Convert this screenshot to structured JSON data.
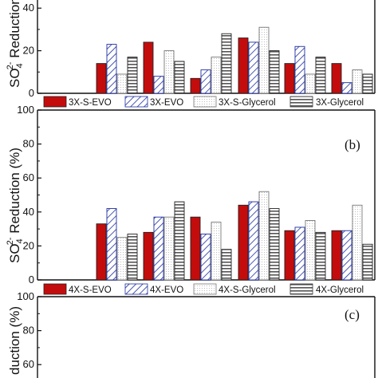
{
  "chart_data": [
    {
      "type": "bar",
      "panel_label": "",
      "ylabel_parts": [
        "SO",
        "4",
        "2-",
        " Reduction (%)"
      ],
      "ylim": [
        0,
        100
      ],
      "yticks": [
        "0",
        "20",
        "40"
      ],
      "grid": false,
      "series": [
        {
          "name": "3X-S-EVO",
          "values": [
            0,
            14,
            24,
            7,
            26,
            14,
            14
          ],
          "color": "#c40c0c",
          "fill": "solid"
        },
        {
          "name": "3X-EVO",
          "values": [
            0,
            23,
            8,
            11,
            24,
            22,
            5
          ],
          "color": "#1e2fa0",
          "fill": "hatch"
        },
        {
          "name": "3X-S-Glycerol",
          "values": [
            0,
            9,
            20,
            17,
            31,
            9,
            11
          ],
          "color": "#9a9a9a",
          "fill": "dots"
        },
        {
          "name": "3X-Glycerol",
          "values": [
            0,
            17,
            15,
            28,
            20,
            17,
            9
          ],
          "color": "#444444",
          "fill": "stripes"
        }
      ]
    },
    {
      "type": "bar",
      "panel_label": "(b)",
      "ylabel_parts": [
        "SO",
        "4",
        "2-",
        " Reduction (%)"
      ],
      "ylim": [
        0,
        100
      ],
      "yticks": [
        "100",
        "80",
        "60",
        "40",
        "20",
        "0"
      ],
      "grid": false,
      "series": [
        {
          "name": "4X-S-EVO",
          "values": [
            0,
            33,
            28,
            37,
            44,
            29,
            29
          ],
          "color": "#c40c0c",
          "fill": "solid"
        },
        {
          "name": "4X-EVO",
          "values": [
            0,
            42,
            37,
            27,
            46,
            31,
            29
          ],
          "color": "#1e2fa0",
          "fill": "hatch"
        },
        {
          "name": "4X-S-Glycerol",
          "values": [
            0,
            25,
            37,
            34,
            52,
            35,
            44
          ],
          "color": "#9a9a9a",
          "fill": "dots"
        },
        {
          "name": "4X-Glycerol",
          "values": [
            0,
            27,
            46,
            18,
            42,
            28,
            21
          ],
          "color": "#444444",
          "fill": "stripes"
        }
      ]
    },
    {
      "type": "bar",
      "panel_label": "(c)",
      "ylabel_parts": [
        "",
        "",
        "",
        "duction (%)"
      ],
      "ylim": [
        0,
        100
      ],
      "yticks": [
        "100",
        "80",
        "60"
      ],
      "grid": false,
      "series": []
    }
  ]
}
